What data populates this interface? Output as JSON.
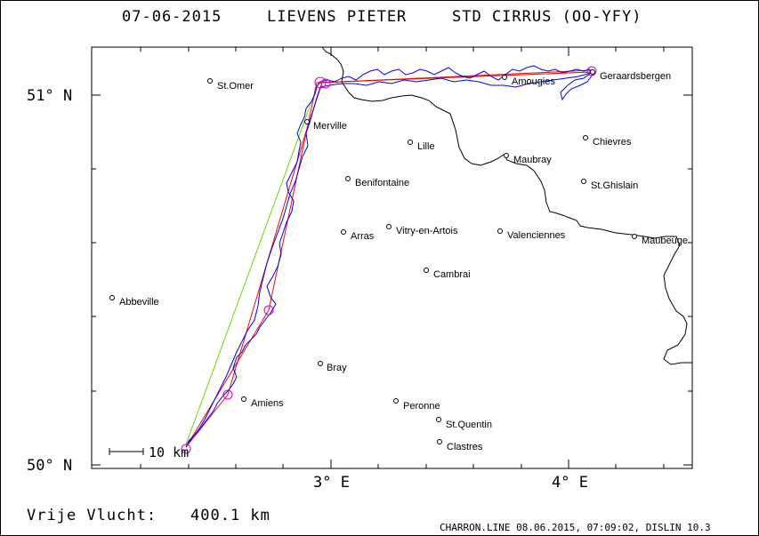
{
  "header": {
    "date": "07-06-2015",
    "pilot": "LIEVENS PIETER",
    "glider": "STD CIRRUS (OO-YFY)"
  },
  "axes": {
    "lat_labels": [
      "51° N",
      "50° N"
    ],
    "lon_labels": [
      "3° E",
      "4° E"
    ]
  },
  "scale_bar": {
    "label": "10 km"
  },
  "footer": {
    "distance_label": "Vrije Vlucht:",
    "distance_value": "400.1 km",
    "credit": "CHARRON.LINE 08.06.2015, 07:09:02, DISLIN 10.3"
  },
  "colors": {
    "track": "#0000ff",
    "task_red": "#ff0000",
    "task_green": "#66dd00",
    "turnpoint": "#cc00cc",
    "border": "#000000"
  },
  "places": [
    {
      "name": "St.Omer"
    },
    {
      "name": "Merville"
    },
    {
      "name": "Lille"
    },
    {
      "name": "Amougies"
    },
    {
      "name": "Geraardsbergen"
    },
    {
      "name": "Chievres"
    },
    {
      "name": "Maubray"
    },
    {
      "name": "St.Ghislain"
    },
    {
      "name": "Benifontaine"
    },
    {
      "name": "Vitry-en-Artois"
    },
    {
      "name": "Arras"
    },
    {
      "name": "Valenciennes"
    },
    {
      "name": "Maubeuge"
    },
    {
      "name": "Abbeville"
    },
    {
      "name": "Cambrai"
    },
    {
      "name": "Bray"
    },
    {
      "name": "Amiens"
    },
    {
      "name": "Peronne"
    },
    {
      "name": "St.Quentin"
    },
    {
      "name": "Clastres"
    }
  ]
}
